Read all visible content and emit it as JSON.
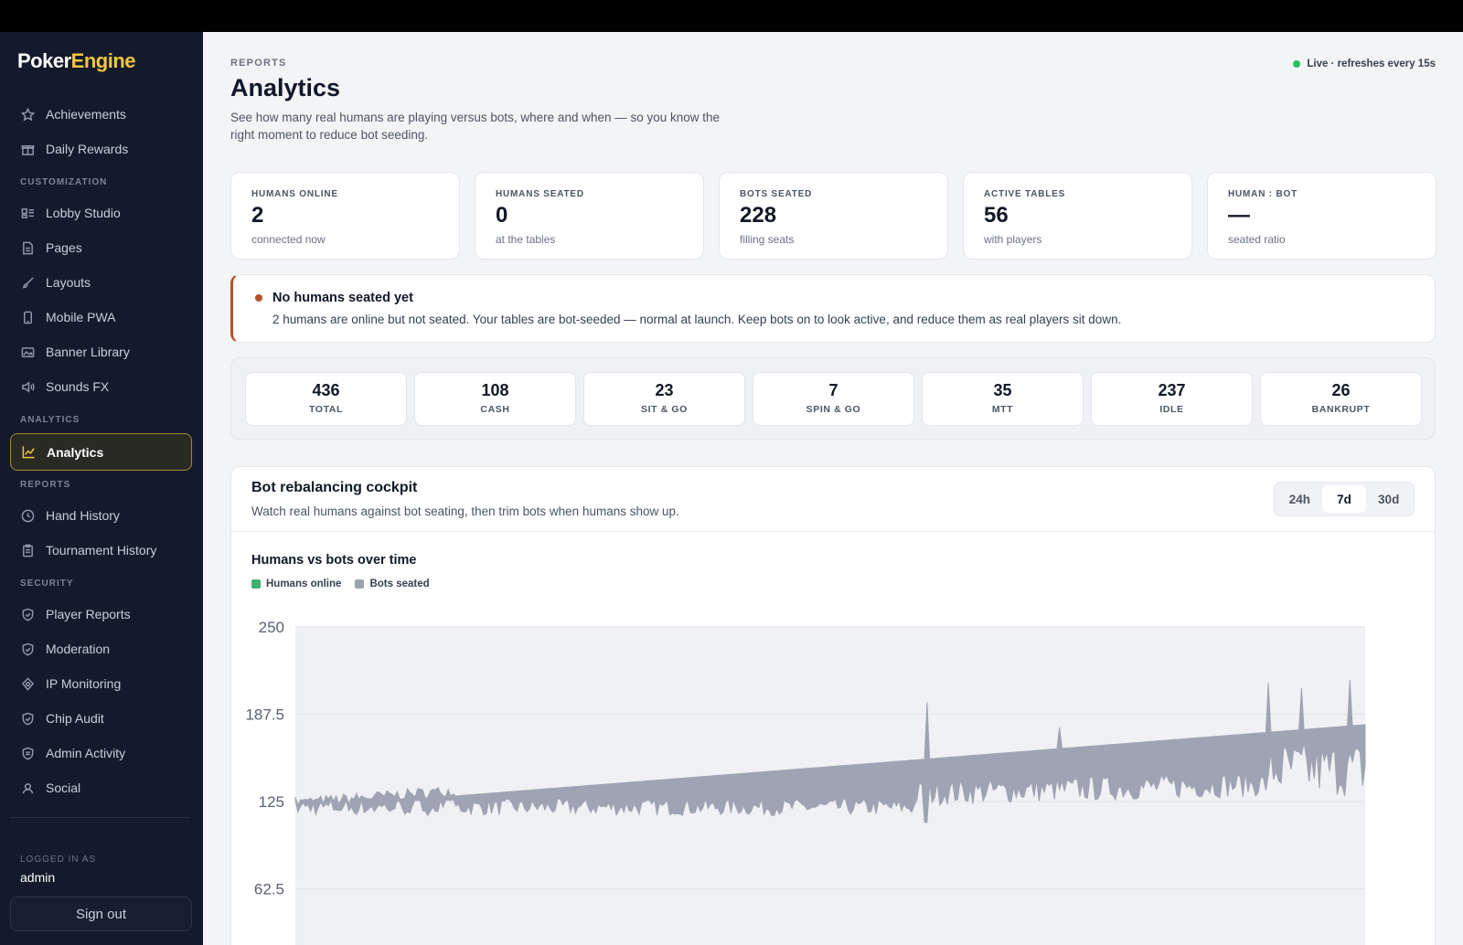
{
  "brand": {
    "part1": "Poker",
    "part2": "Engine"
  },
  "sidebar": {
    "items_top": [
      {
        "label": "Achievements",
        "icon": "star-icon"
      },
      {
        "label": "Daily Rewards",
        "icon": "gift-icon"
      }
    ],
    "section_customization": "CUSTOMIZATION",
    "items_customization": [
      {
        "label": "Lobby Studio",
        "icon": "layout-icon"
      },
      {
        "label": "Pages",
        "icon": "page-icon"
      },
      {
        "label": "Layouts",
        "icon": "brush-icon"
      },
      {
        "label": "Mobile PWA",
        "icon": "phone-icon"
      },
      {
        "label": "Banner Library",
        "icon": "image-icon"
      },
      {
        "label": "Sounds FX",
        "icon": "speaker-icon"
      }
    ],
    "section_analytics": "ANALYTICS",
    "items_analytics": [
      {
        "label": "Analytics",
        "icon": "chart-icon"
      }
    ],
    "section_reports": "REPORTS",
    "items_reports": [
      {
        "label": "Hand History",
        "icon": "clock-icon"
      },
      {
        "label": "Tournament History",
        "icon": "clipboard-icon"
      }
    ],
    "section_security": "SECURITY",
    "items_security": [
      {
        "label": "Player Reports",
        "icon": "shield-icon"
      },
      {
        "label": "Moderation",
        "icon": "shield-icon"
      },
      {
        "label": "IP Monitoring",
        "icon": "radar-icon"
      },
      {
        "label": "Chip Audit",
        "icon": "shield-icon"
      },
      {
        "label": "Admin Activity",
        "icon": "shield-icon"
      },
      {
        "label": "Social",
        "icon": "user-icon"
      }
    ],
    "logged_in_label": "LOGGED IN AS",
    "logged_in_user": "admin",
    "sign_out": "Sign out"
  },
  "header": {
    "breadcrumb": "REPORTS",
    "title": "Analytics",
    "description": "See how many real humans are playing versus bots, where and when — so you know the right moment to reduce bot seeding.",
    "live_status": "Live · refreshes every 15s"
  },
  "stats": [
    {
      "label": "HUMANS ONLINE",
      "value": "2",
      "sub": "connected now"
    },
    {
      "label": "HUMANS SEATED",
      "value": "0",
      "sub": "at the tables"
    },
    {
      "label": "BOTS SEATED",
      "value": "228",
      "sub": "filling seats"
    },
    {
      "label": "ACTIVE TABLES",
      "value": "56",
      "sub": "with players"
    },
    {
      "label": "HUMAN : BOT",
      "value": "—",
      "sub": "seated ratio"
    }
  ],
  "alert": {
    "title": "No humans seated yet",
    "text": "2 humans are online but not seated. Your tables are bot-seeded — normal at launch. Keep bots on to look active, and reduce them as real players sit down.",
    "color": "#b4532a"
  },
  "counts": [
    {
      "value": "436",
      "label": "TOTAL"
    },
    {
      "value": "108",
      "label": "CASH"
    },
    {
      "value": "23",
      "label": "SIT & GO"
    },
    {
      "value": "7",
      "label": "SPIN & GO"
    },
    {
      "value": "35",
      "label": "MTT"
    },
    {
      "value": "237",
      "label": "IDLE"
    },
    {
      "value": "26",
      "label": "BANKRUPT"
    }
  ],
  "cockpit": {
    "title": "Bot rebalancing cockpit",
    "subtitle": "Watch real humans against bot seating, then trim bots when humans show up.",
    "ranges": [
      "24h",
      "7d",
      "30d"
    ],
    "selected_range": "7d"
  },
  "chart_data": {
    "type": "area",
    "title": "Humans vs bots over time",
    "xlabel": "",
    "ylabel": "",
    "ylim": [
      0,
      250
    ],
    "yticks": [
      250,
      187.5,
      125,
      62.5
    ],
    "grid": true,
    "legend_placement": "top-left",
    "series": [
      {
        "name": "Humans online",
        "color": "#3fb36b",
        "trend_start": 0,
        "trend_end": 0
      },
      {
        "name": "Bots seated",
        "color": "#9ea4b3",
        "trend_start": 120,
        "trend_end": 180,
        "spikes": [
          196,
          178,
          210,
          206,
          212
        ]
      }
    ]
  },
  "colors": {
    "accent": "#f4c542",
    "sidebar_bg": "#131a2b",
    "live": "#22c55e"
  }
}
